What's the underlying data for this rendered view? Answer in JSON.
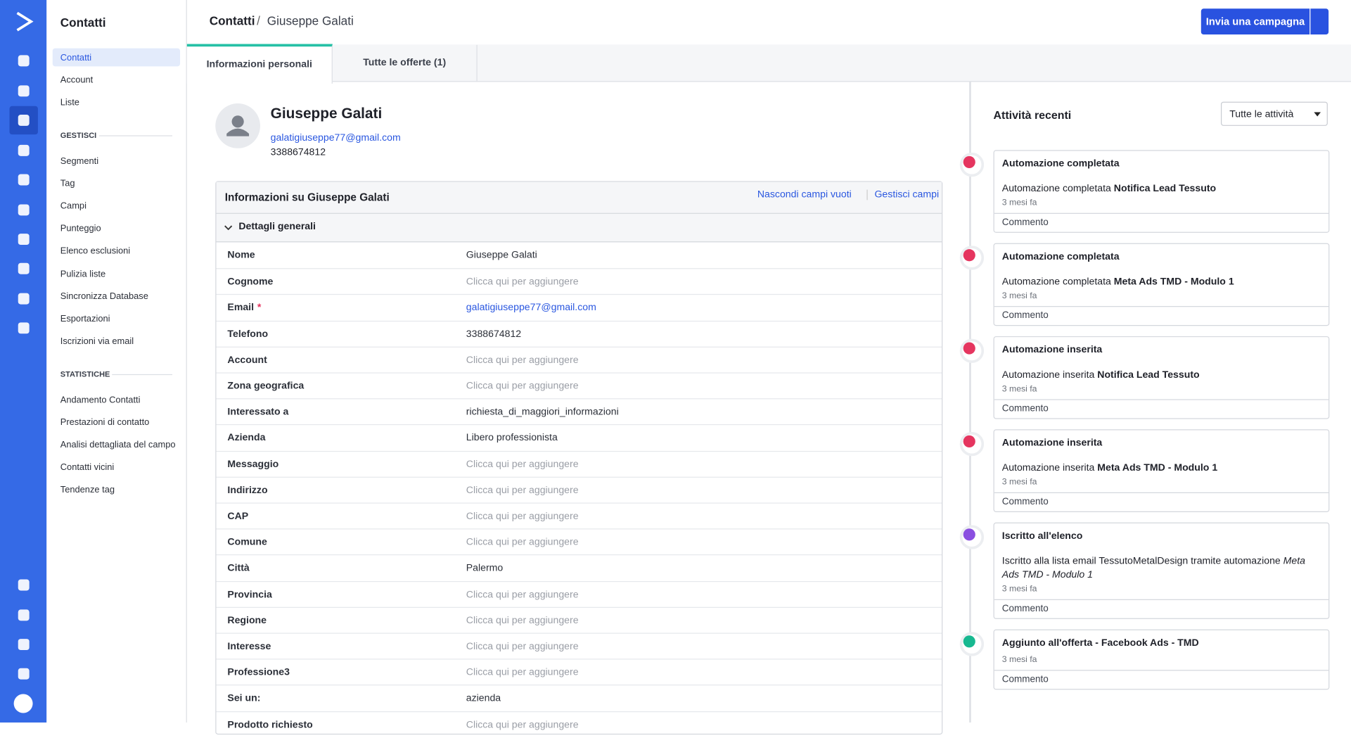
{
  "header": {
    "breadcrumb": [
      "Contatti",
      "Giuseppe Galati"
    ],
    "button": "Invia una campagna"
  },
  "sidebar": {
    "title": "Contatti",
    "items": [
      "Contatti",
      "Account",
      "Liste"
    ],
    "sections": [
      {
        "title": "GESTISCI",
        "items": [
          "Segmenti",
          "Tag",
          "Campi",
          "Punteggio",
          "Elenco esclusioni",
          "Pulizia liste",
          "Sincronizza Database",
          "Esportazioni",
          "Iscrizioni via email"
        ]
      },
      {
        "title": "STATISTICHE",
        "items": [
          "Andamento Contatti",
          "Prestazioni di contatto",
          "Analisi dettagliata del campo",
          "Contatti vicini",
          "Tendenze tag"
        ]
      }
    ]
  },
  "tabs": [
    "Informazioni personali",
    "Tutte le offerte (1)"
  ],
  "contact": {
    "name": "Giuseppe Galati",
    "email": "galatigiuseppe77@gmail.com",
    "phone": "3388674812"
  },
  "panel": {
    "title": "Informazioni su Giuseppe Galati",
    "actions": [
      "Nascondi campi vuoti",
      "Gestisci campi"
    ],
    "section": "Dettagli generali",
    "placeholder": "Clicca qui per aggiungere",
    "required_mark": "*",
    "rows": [
      {
        "label": "Nome",
        "value": "Giuseppe Galati"
      },
      {
        "label": "Cognome",
        "value": null
      },
      {
        "label": "Email",
        "value": "galatigiuseppe77@gmail.com",
        "required": true,
        "link": true
      },
      {
        "label": "Telefono",
        "value": "3388674812"
      },
      {
        "label": "Account",
        "value": null
      },
      {
        "label": "Zona geografica",
        "value": null
      },
      {
        "label": "Interessato a",
        "value": "richiesta_di_maggiori_informazioni"
      },
      {
        "label": "Azienda",
        "value": "Libero professionista"
      },
      {
        "label": "Messaggio",
        "value": null
      },
      {
        "label": "Indirizzo",
        "value": null
      },
      {
        "label": "CAP",
        "value": null
      },
      {
        "label": "Comune",
        "value": null
      },
      {
        "label": "Città",
        "value": "Palermo"
      },
      {
        "label": "Provincia",
        "value": null
      },
      {
        "label": "Regione",
        "value": null
      },
      {
        "label": "Interesse",
        "value": null
      },
      {
        "label": "Professione3",
        "value": null
      },
      {
        "label": "Sei un:",
        "value": "azienda"
      },
      {
        "label": "Prodotto richiesto",
        "value": null
      }
    ]
  },
  "activity": {
    "title": "Attività recenti",
    "filter": "Tutte le attività",
    "comment": "Commento",
    "items": [
      {
        "title": "Automazione completata",
        "text": "Automazione completata ",
        "bold": "Notifica Lead Tessuto",
        "time": "3 mesi fa",
        "color": "#e5355f"
      },
      {
        "title": "Automazione completata",
        "text": "Automazione completata ",
        "bold": "Meta Ads TMD - Modulo 1",
        "time": "3 mesi fa",
        "color": "#e5355f"
      },
      {
        "title": "Automazione inserita",
        "text": "Automazione inserita ",
        "bold": "Notifica Lead Tessuto",
        "time": "3 mesi fa",
        "color": "#e5355f"
      },
      {
        "title": "Automazione inserita",
        "text": "Automazione inserita ",
        "bold": "Meta Ads TMD - Modulo 1",
        "time": "3 mesi fa",
        "color": "#e5355f"
      },
      {
        "title": "Iscritto all'elenco",
        "text": "Iscritto alla lista email TessutoMetalDesign tramite automazione ",
        "italic": "Meta Ads TMD - Modulo 1",
        "time": "3 mesi fa",
        "color": "#8a4fe0"
      },
      {
        "title": "Aggiunto all'offerta - Facebook Ads - TMD",
        "time": "3 mesi fa",
        "color": "#17b890"
      }
    ]
  }
}
